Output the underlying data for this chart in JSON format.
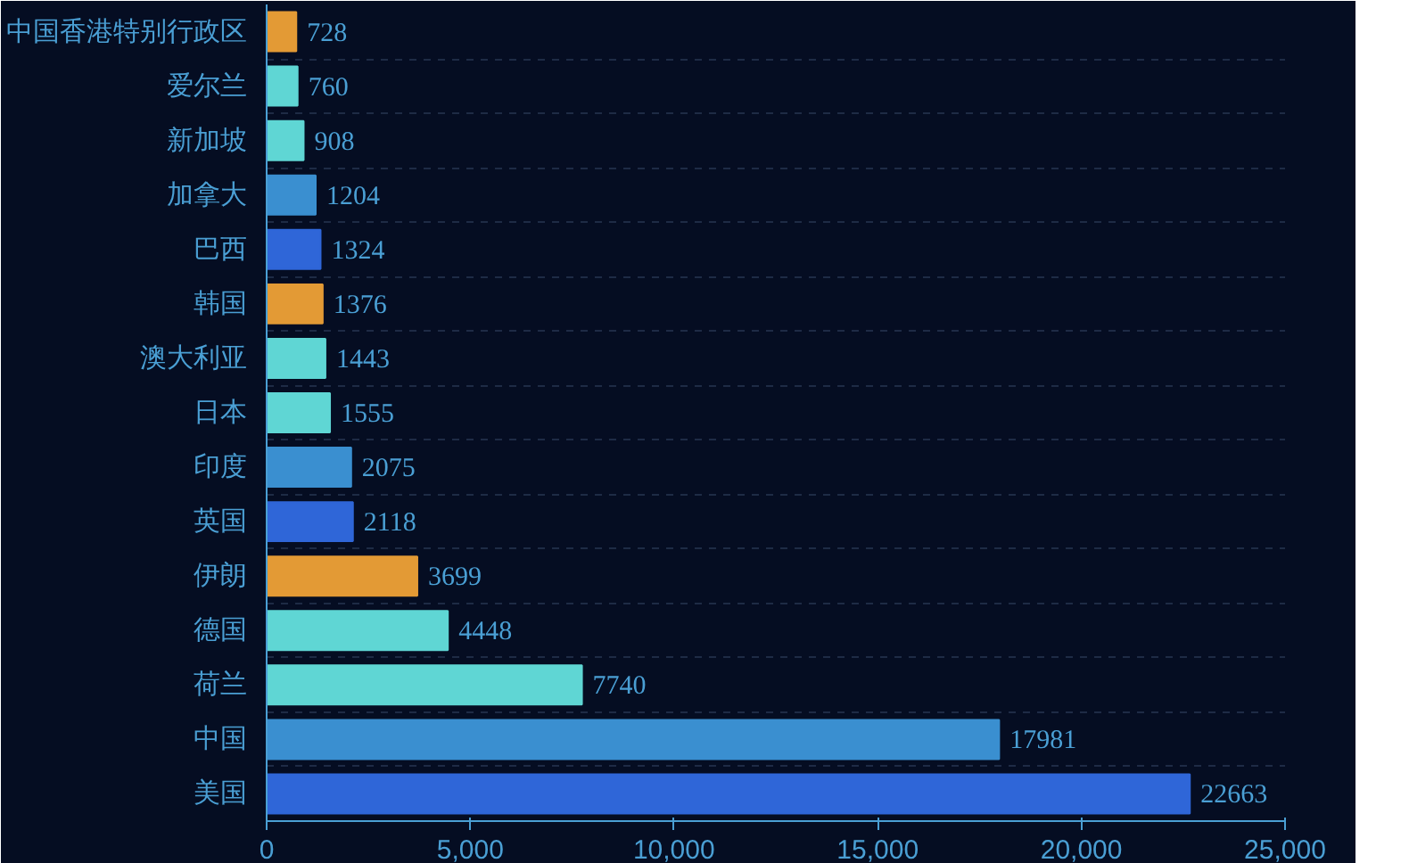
{
  "chart_data": {
    "type": "bar",
    "orientation": "horizontal",
    "categories": [
      "中国香港特别行政区",
      "爱尔兰",
      "新加坡",
      "加拿大",
      "巴西",
      "韩国",
      "澳大利亚",
      "日本",
      "印度",
      "英国",
      "伊朗",
      "德国",
      "荷兰",
      "中国",
      "美国"
    ],
    "values": [
      728,
      760,
      908,
      1204,
      1324,
      1376,
      1443,
      1555,
      2075,
      2118,
      3699,
      4448,
      7740,
      17981,
      22663
    ],
    "colors": [
      "#e39a35",
      "#5fd6d4",
      "#5fd6d4",
      "#3a8fd0",
      "#2f66d8",
      "#e39a35",
      "#5fd6d4",
      "#5fd6d4",
      "#3a8fd0",
      "#2f66d8",
      "#e39a35",
      "#5fd6d4",
      "#5fd6d4",
      "#3a8fd0",
      "#2f66d8"
    ],
    "xlim": [
      0,
      25000
    ],
    "xticks": [
      0,
      {
        "value": 5000,
        "label": "5,000"
      },
      {
        "value": 10000,
        "label": "10,000"
      },
      {
        "value": 15000,
        "label": "15,000"
      },
      {
        "value": 20000,
        "label": "20,000"
      },
      {
        "value": 25000,
        "label": "25,000"
      }
    ],
    "grid": "y",
    "data_labels": true
  }
}
